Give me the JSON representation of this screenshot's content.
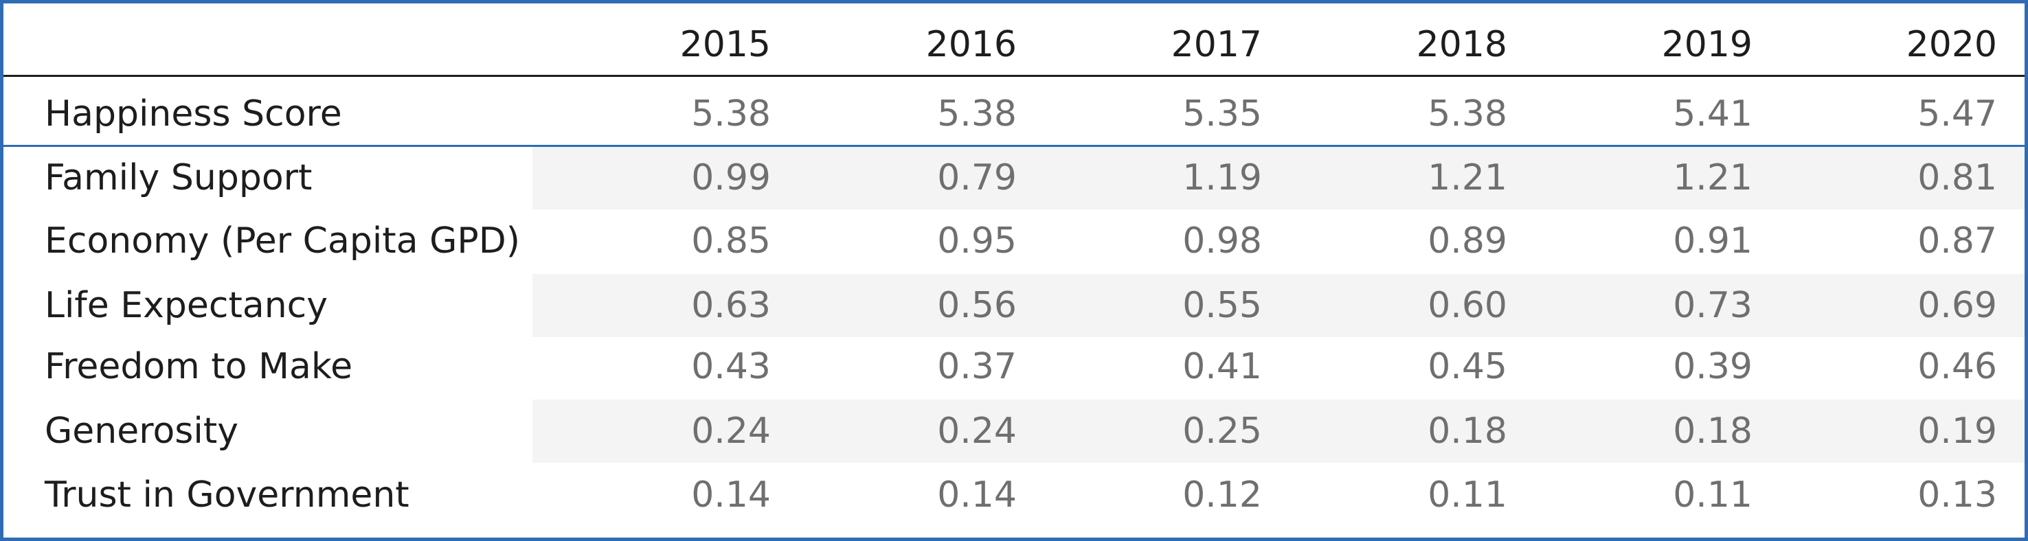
{
  "chart_data": {
    "type": "table",
    "columns": [
      "2015",
      "2016",
      "2017",
      "2018",
      "2019",
      "2020"
    ],
    "rows": [
      {
        "label": "Happiness Score",
        "values": [
          "5.38",
          "5.38",
          "5.35",
          "5.38",
          "5.41",
          "5.47"
        ]
      },
      {
        "label": "Family Support",
        "values": [
          "0.99",
          "0.79",
          "1.19",
          "1.21",
          "1.21",
          "0.81"
        ]
      },
      {
        "label": "Economy (Per Capita GPD)",
        "values": [
          "0.85",
          "0.95",
          "0.98",
          "0.89",
          "0.91",
          "0.87"
        ]
      },
      {
        "label": "Life Expectancy",
        "values": [
          "0.63",
          "0.56",
          "0.55",
          "0.60",
          "0.73",
          "0.69"
        ]
      },
      {
        "label": "Freedom to Make",
        "values": [
          "0.43",
          "0.37",
          "0.41",
          "0.45",
          "0.39",
          "0.46"
        ]
      },
      {
        "label": "Generosity",
        "values": [
          "0.24",
          "0.24",
          "0.25",
          "0.18",
          "0.18",
          "0.19"
        ]
      },
      {
        "label": "Trust in Government",
        "values": [
          "0.14",
          "0.14",
          "0.12",
          "0.11",
          "0.11",
          "0.13"
        ]
      }
    ]
  },
  "colors": {
    "border": "#2f6cb3",
    "text": "#1d1d1d",
    "value_text": "#6f6f6f",
    "row_shade": "#f4f4f4"
  }
}
